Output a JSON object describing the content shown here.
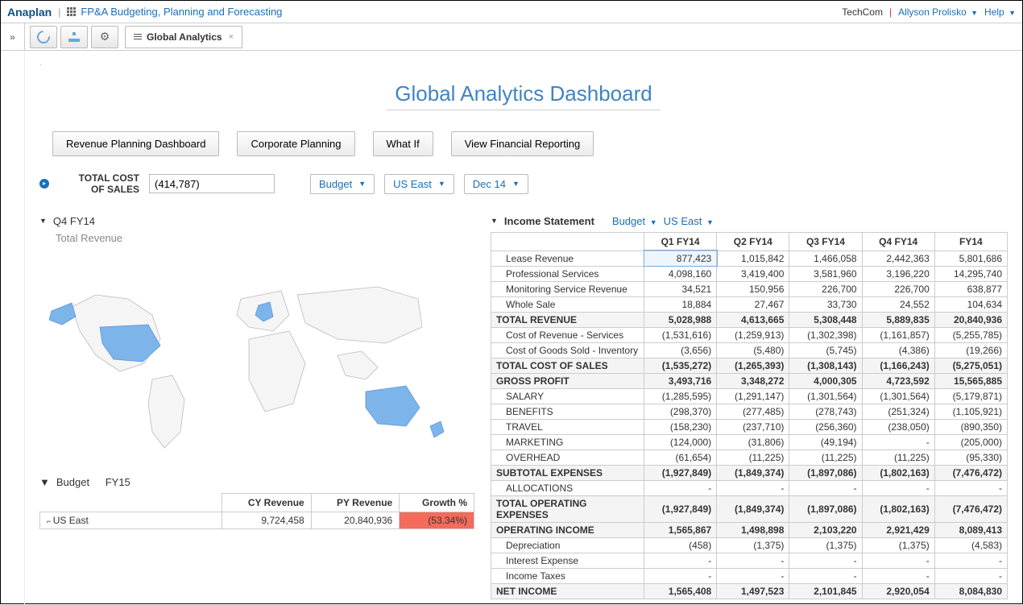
{
  "header": {
    "brand": "Anaplan",
    "module": "FP&A Budgeting, Planning and Forecasting",
    "company": "TechCom",
    "user": "Allyson Prolisko",
    "help": "Help"
  },
  "tab": {
    "title": "Global Analytics"
  },
  "dashboard": {
    "title": "Global Analytics Dashboard",
    "nav": [
      "Revenue Planning Dashboard",
      "Corporate Planning",
      "What If",
      "View Financial Reporting"
    ],
    "metric_label_l1": "TOTAL COST",
    "metric_label_l2": "OF SALES",
    "metric_value": "(414,787)",
    "dd_budget": "Budget",
    "dd_region": "US East",
    "dd_period": "Dec 14"
  },
  "map_section": {
    "period": "Q4 FY14",
    "sub": "Total Revenue",
    "highlight_color": "#7db4ea",
    "land_color": "#f5f5f5",
    "border_color": "#bbbbbb"
  },
  "income_statement": {
    "title": "Income Statement",
    "dd1": "Budget",
    "dd2": "US East",
    "columns": [
      "Q1 FY14",
      "Q2 FY14",
      "Q3 FY14",
      "Q4 FY14",
      "FY14"
    ],
    "rows": [
      {
        "label": "Lease Revenue",
        "indent": 1,
        "bold": false,
        "sel": true,
        "vals": [
          "877,423",
          "1,015,842",
          "1,466,058",
          "2,442,363",
          "5,801,686"
        ]
      },
      {
        "label": "Professional Services",
        "indent": 1,
        "bold": false,
        "vals": [
          "4,098,160",
          "3,419,400",
          "3,581,960",
          "3,196,220",
          "14,295,740"
        ]
      },
      {
        "label": "Monitoring Service Revenue",
        "indent": 1,
        "bold": false,
        "vals": [
          "34,521",
          "150,956",
          "226,700",
          "226,700",
          "638,877"
        ]
      },
      {
        "label": "Whole Sale",
        "indent": 1,
        "bold": false,
        "vals": [
          "18,884",
          "27,467",
          "33,730",
          "24,552",
          "104,634"
        ]
      },
      {
        "label": "TOTAL REVENUE",
        "indent": 0,
        "bold": true,
        "vals": [
          "5,028,988",
          "4,613,665",
          "5,308,448",
          "5,889,835",
          "20,840,936"
        ]
      },
      {
        "label": "Cost of Revenue - Services",
        "indent": 1,
        "bold": false,
        "vals": [
          "(1,531,616)",
          "(1,259,913)",
          "(1,302,398)",
          "(1,161,857)",
          "(5,255,785)"
        ]
      },
      {
        "label": "Cost of Goods Sold - Inventory",
        "indent": 1,
        "bold": false,
        "vals": [
          "(3,656)",
          "(5,480)",
          "(5,745)",
          "(4,386)",
          "(19,266)"
        ]
      },
      {
        "label": "TOTAL COST OF SALES",
        "indent": 0,
        "bold": true,
        "vals": [
          "(1,535,272)",
          "(1,265,393)",
          "(1,308,143)",
          "(1,166,243)",
          "(5,275,051)"
        ]
      },
      {
        "label": "GROSS PROFIT",
        "indent": 0,
        "bold": true,
        "vals": [
          "3,493,716",
          "3,348,272",
          "4,000,305",
          "4,723,592",
          "15,565,885"
        ]
      },
      {
        "label": "SALARY",
        "indent": 1,
        "bold": false,
        "vals": [
          "(1,285,595)",
          "(1,291,147)",
          "(1,301,564)",
          "(1,301,564)",
          "(5,179,871)"
        ]
      },
      {
        "label": "BENEFITS",
        "indent": 1,
        "bold": false,
        "vals": [
          "(298,370)",
          "(277,485)",
          "(278,743)",
          "(251,324)",
          "(1,105,921)"
        ]
      },
      {
        "label": "TRAVEL",
        "indent": 1,
        "bold": false,
        "vals": [
          "(158,230)",
          "(237,710)",
          "(256,360)",
          "(238,050)",
          "(890,350)"
        ]
      },
      {
        "label": "MARKETING",
        "indent": 1,
        "bold": false,
        "vals": [
          "(124,000)",
          "(31,806)",
          "(49,194)",
          "-",
          "(205,000)"
        ]
      },
      {
        "label": "OVERHEAD",
        "indent": 1,
        "bold": false,
        "vals": [
          "(61,654)",
          "(11,225)",
          "(11,225)",
          "(11,225)",
          "(95,330)"
        ]
      },
      {
        "label": "SUBTOTAL EXPENSES",
        "indent": 0,
        "bold": true,
        "vals": [
          "(1,927,849)",
          "(1,849,374)",
          "(1,897,086)",
          "(1,802,163)",
          "(7,476,472)"
        ]
      },
      {
        "label": "ALLOCATIONS",
        "indent": 1,
        "bold": false,
        "vals": [
          "-",
          "-",
          "-",
          "-",
          "-"
        ]
      },
      {
        "label": "TOTAL OPERATING EXPENSES",
        "indent": 0,
        "bold": true,
        "vals": [
          "(1,927,849)",
          "(1,849,374)",
          "(1,897,086)",
          "(1,802,163)",
          "(7,476,472)"
        ]
      },
      {
        "label": "OPERATING INCOME",
        "indent": 0,
        "bold": true,
        "vals": [
          "1,565,867",
          "1,498,898",
          "2,103,220",
          "2,921,429",
          "8,089,413"
        ]
      },
      {
        "label": "Depreciation",
        "indent": 1,
        "bold": false,
        "vals": [
          "(458)",
          "(1,375)",
          "(1,375)",
          "(1,375)",
          "(4,583)"
        ]
      },
      {
        "label": "Interest Expense",
        "indent": 1,
        "bold": false,
        "vals": [
          "-",
          "-",
          "-",
          "-",
          "-"
        ]
      },
      {
        "label": "Income Taxes",
        "indent": 1,
        "bold": false,
        "vals": [
          "-",
          "-",
          "-",
          "-",
          "-"
        ]
      },
      {
        "label": "NET INCOME",
        "indent": 0,
        "bold": true,
        "vals": [
          "1,565,408",
          "1,497,523",
          "2,101,845",
          "2,920,054",
          "8,084,830"
        ]
      }
    ]
  },
  "budget_section": {
    "scenario": "Budget",
    "year": "FY15",
    "columns": [
      "",
      "CY Revenue",
      "PY Revenue",
      "Growth %"
    ],
    "row": {
      "label": "US East",
      "cy": "9,724,458",
      "py": "20,840,936",
      "growth": "(53.34%)"
    }
  }
}
